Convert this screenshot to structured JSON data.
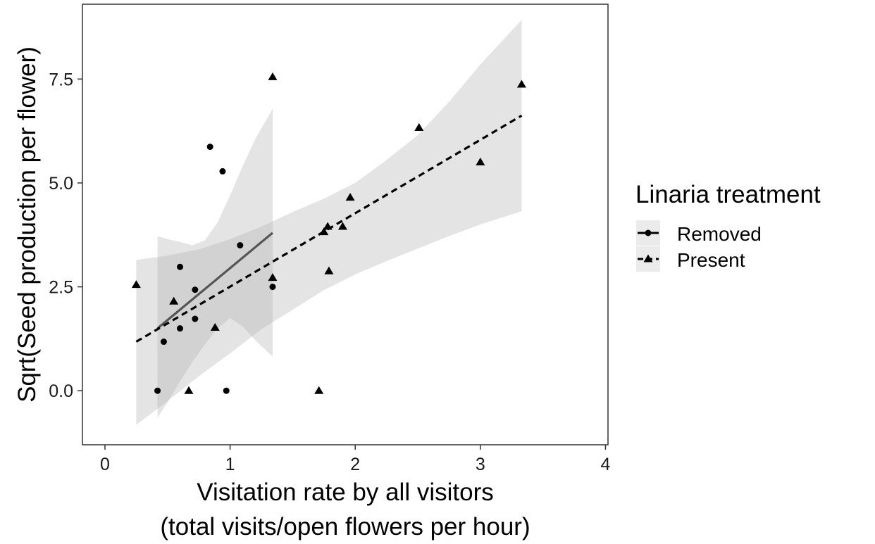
{
  "chart_data": {
    "type": "scatter",
    "title": "",
    "xlabel_lines": [
      "Visitation rate by all visitors",
      "(total visits/open flowers per hour)"
    ],
    "ylabel": "Sqrt(Seed production per flower)",
    "xlim": [
      -0.18,
      4.02
    ],
    "ylim": [
      -1.3,
      9.3
    ],
    "x_ticks": [
      0,
      1,
      2,
      3,
      4
    ],
    "x_tick_labels": [
      "0",
      "1",
      "2",
      "3",
      "4"
    ],
    "y_ticks": [
      0.0,
      2.5,
      5.0,
      7.5
    ],
    "y_tick_labels": [
      "0.0",
      "2.5",
      "5.0",
      "7.5"
    ],
    "grid": false,
    "legend": {
      "title": "Linaria treatment",
      "position": "right",
      "entries": [
        {
          "label": "Removed",
          "marker": "circle",
          "line": "solid"
        },
        {
          "label": "Present",
          "marker": "triangle",
          "line": "dashed"
        }
      ]
    },
    "series": [
      {
        "name": "Removed",
        "marker": "circle",
        "line_style": "solid",
        "line_color": "#555555",
        "points": [
          [
            0.42,
            0.0
          ],
          [
            0.47,
            1.18
          ],
          [
            0.6,
            1.5
          ],
          [
            0.6,
            2.98
          ],
          [
            0.72,
            2.43
          ],
          [
            0.72,
            1.73
          ],
          [
            0.84,
            5.87
          ],
          [
            0.94,
            5.28
          ],
          [
            0.97,
            0.0
          ],
          [
            1.08,
            3.5
          ],
          [
            1.34,
            2.5
          ]
        ],
        "fit": {
          "x": [
            0.42,
            1.34
          ],
          "y": [
            1.5,
            3.8
          ]
        },
        "ribbon": [
          [
            0.42,
            -0.65,
            3.72
          ],
          [
            0.5,
            -0.28,
            3.65
          ],
          [
            0.6,
            0.22,
            3.58
          ],
          [
            0.7,
            0.7,
            3.5
          ],
          [
            0.8,
            1.12,
            3.62
          ],
          [
            0.9,
            1.5,
            4.05
          ],
          [
            1.0,
            1.75,
            4.7
          ],
          [
            1.1,
            1.55,
            5.4
          ],
          [
            1.2,
            1.22,
            6.05
          ],
          [
            1.34,
            0.82,
            6.78
          ]
        ]
      },
      {
        "name": "Present",
        "marker": "triangle",
        "line_style": "dashed",
        "line_color": "#000000",
        "points": [
          [
            0.25,
            2.55
          ],
          [
            0.55,
            2.15
          ],
          [
            0.67,
            0.0
          ],
          [
            0.88,
            1.52
          ],
          [
            1.34,
            7.55
          ],
          [
            1.34,
            2.72
          ],
          [
            1.71,
            0.0
          ],
          [
            1.75,
            3.82
          ],
          [
            1.78,
            3.95
          ],
          [
            1.79,
            2.88
          ],
          [
            1.9,
            3.95
          ],
          [
            1.96,
            4.65
          ],
          [
            2.51,
            6.33
          ],
          [
            3.0,
            5.5
          ],
          [
            3.33,
            7.37
          ]
        ],
        "fit": {
          "x": [
            0.25,
            3.33
          ],
          "y": [
            1.18,
            6.62
          ]
        },
        "ribbon": [
          [
            0.25,
            -0.82,
            3.15
          ],
          [
            0.5,
            -0.25,
            3.25
          ],
          [
            0.75,
            0.35,
            3.4
          ],
          [
            1.0,
            0.9,
            3.65
          ],
          [
            1.25,
            1.48,
            3.95
          ],
          [
            1.5,
            1.95,
            4.3
          ],
          [
            1.75,
            2.42,
            4.62
          ],
          [
            2.0,
            2.8,
            5.0
          ],
          [
            2.25,
            3.12,
            5.55
          ],
          [
            2.5,
            3.42,
            6.15
          ],
          [
            2.75,
            3.72,
            6.95
          ],
          [
            3.0,
            4.0,
            7.85
          ],
          [
            3.33,
            4.32,
            8.92
          ]
        ]
      }
    ]
  },
  "colors": {
    "ribbon": "#b3b3b3",
    "ribbon_opacity": "0.35",
    "points": "#000000",
    "axis": "#333333",
    "legend_key_bg": "#ebebeb"
  }
}
